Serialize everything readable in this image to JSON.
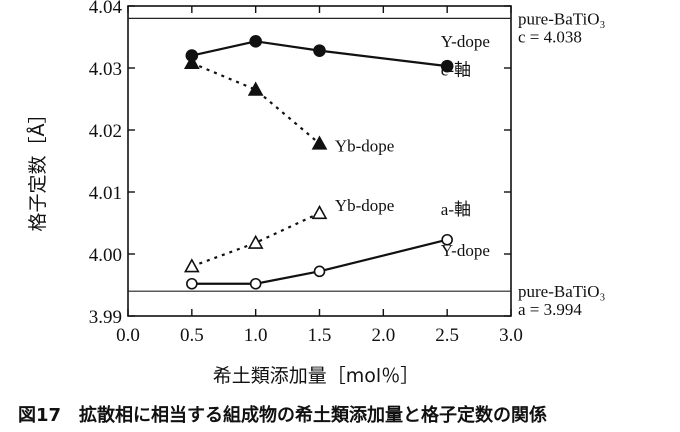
{
  "chart_data": {
    "type": "line",
    "xlabel": "希土類添加量［mol％］",
    "ylabel": "格子定数［Å］",
    "xlim": [
      0.0,
      3.0
    ],
    "ylim": [
      3.99,
      4.04
    ],
    "x_ticks": [
      "0.0",
      "0.5",
      "1.0",
      "1.5",
      "2.0",
      "2.5",
      "3.0"
    ],
    "y_ticks": [
      "3.99",
      "4.00",
      "4.01",
      "4.02",
      "4.03",
      "4.04"
    ],
    "grid": false,
    "series": [
      {
        "name": "Y-dope",
        "axis": "c-軸",
        "marker": "filled-circle",
        "line": "solid",
        "x": [
          0.5,
          1.0,
          1.5,
          2.5
        ],
        "y": [
          4.032,
          4.0343,
          4.0328,
          4.0303
        ]
      },
      {
        "name": "Yb-dope",
        "axis": "c-軸",
        "marker": "filled-triangle",
        "line": "dotted",
        "x": [
          0.5,
          1.0,
          1.5
        ],
        "y": [
          4.0308,
          4.0265,
          4.0178
        ]
      },
      {
        "name": "Yb-dope",
        "axis": "a-軸",
        "marker": "open-triangle",
        "line": "dotted",
        "x": [
          0.5,
          1.0,
          1.5
        ],
        "y": [
          3.998,
          4.0018,
          4.0066
        ]
      },
      {
        "name": "Y-dope",
        "axis": "a-軸",
        "marker": "open-circle",
        "line": "solid",
        "x": [
          0.5,
          1.0,
          1.5,
          2.5
        ],
        "y": [
          3.9952,
          3.9952,
          3.9972,
          4.0023
        ]
      }
    ],
    "reference_lines": [
      {
        "label": "pure-BaTiO₃",
        "sublabel": "c = 4.038",
        "y": 4.038
      },
      {
        "label": "pure-BaTiO₃",
        "sublabel": "a = 3.994",
        "y": 3.994
      }
    ],
    "annotations": [
      {
        "text": "Y-dope",
        "x": 2.45,
        "y": 4.0334
      },
      {
        "text": "c-軸",
        "x": 2.45,
        "y": 4.0288
      },
      {
        "text": "Yb-dope",
        "x": 1.62,
        "y": 4.0165
      },
      {
        "text": "Yb-dope",
        "x": 1.62,
        "y": 4.0069
      },
      {
        "text": "a-軸",
        "x": 2.45,
        "y": 4.0063
      },
      {
        "text": "Y-dope",
        "x": 2.45,
        "y": 3.9997
      }
    ],
    "caption": "図17　拡散相に相当する組成物の希土類添加量と格子定数の関係"
  }
}
